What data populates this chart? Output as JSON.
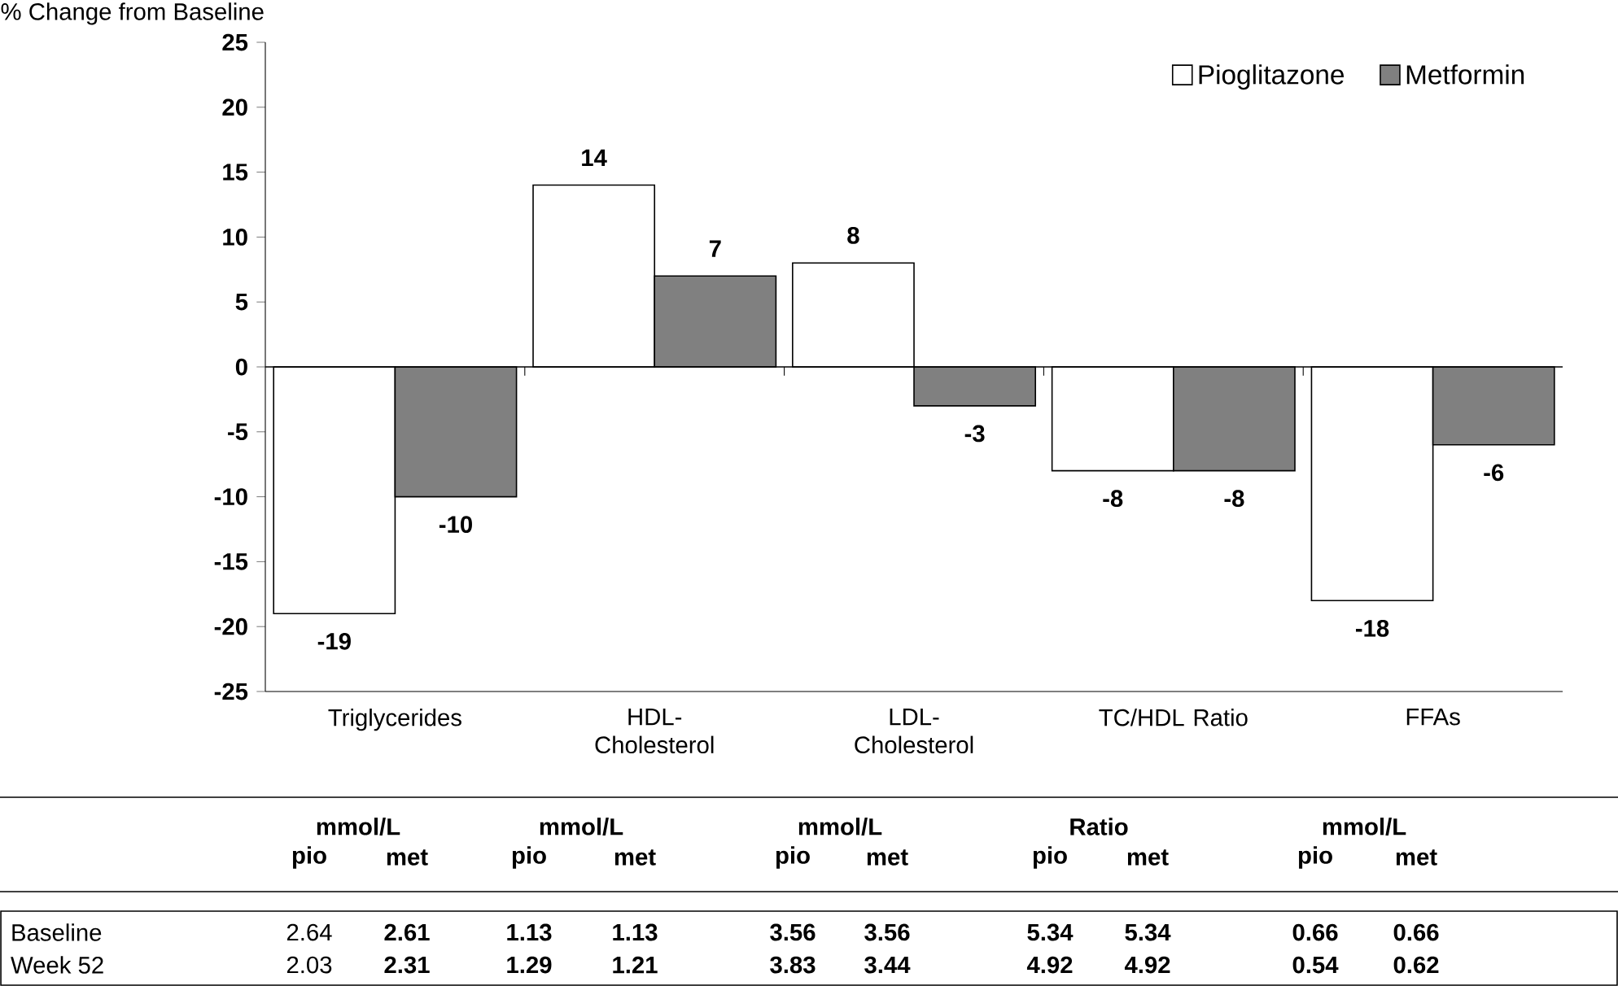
{
  "chart_data": {
    "type": "bar",
    "ylabel": "% Change from Baseline",
    "categories": [
      "Triglycerides",
      "HDL-Cholesterol",
      "LDL-Cholesterol",
      "TC/HDL Ratio",
      "FFAs"
    ],
    "series": [
      {
        "name": "Pioglitazone",
        "color": "#ffffff",
        "values": [
          -19,
          14,
          8,
          -8,
          -18
        ]
      },
      {
        "name": "Metformin",
        "color": "#808080",
        "values": [
          -10,
          7,
          -3,
          -8,
          -6
        ]
      }
    ],
    "ylim": [
      -25,
      25
    ],
    "yticks": [
      -25,
      -20,
      -15,
      -10,
      -5,
      0,
      5,
      10,
      15,
      20,
      25
    ],
    "data_labels": true,
    "legend": "top right",
    "annotations": [
      "mmol/L",
      "mmol/L",
      "mmol/L",
      "Ratio",
      "mmol/L",
      "pio",
      "met",
      "pio",
      "met",
      "pio",
      "met",
      "pio",
      "met",
      "pio",
      "met",
      "Baseline",
      "2.64",
      "2.61",
      "1.13",
      "1.13",
      "3.56",
      "3.56",
      "5.34",
      "5.34",
      "0.66",
      "0.66",
      "Week 52",
      "2.03",
      "2.31",
      "1.29",
      "1.21",
      "3.83",
      "3.44",
      "4.92",
      "4.92",
      "0.54",
      "0.62"
    ]
  }
}
